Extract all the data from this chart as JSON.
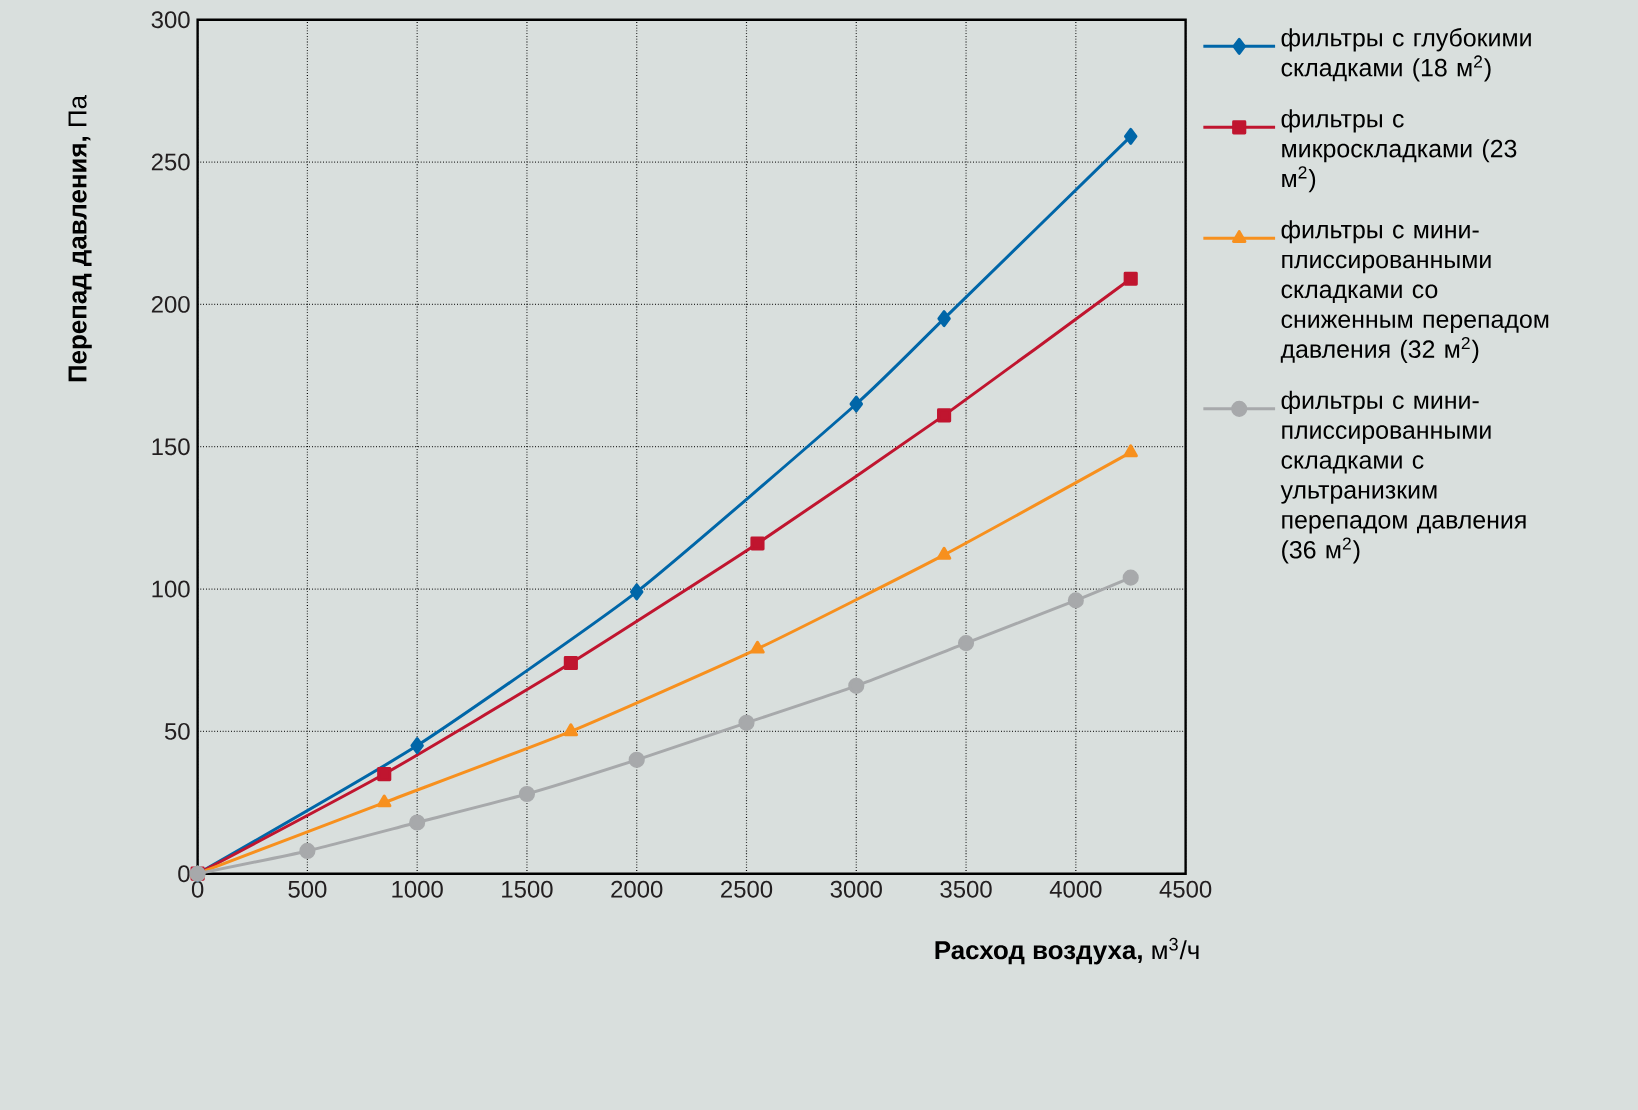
{
  "chart_data": {
    "type": "line",
    "xlabel": "**Расход воздуха,** м$^{3}$/ч",
    "ylabel": "**Перепад давления,** Па",
    "xlim": [
      0,
      4500
    ],
    "ylim": [
      0,
      300
    ],
    "xticks": [
      0,
      500,
      1000,
      1500,
      2000,
      2500,
      3000,
      3500,
      4000,
      4500
    ],
    "yticks": [
      0,
      50,
      100,
      150,
      200,
      250,
      300
    ],
    "grid": true,
    "legend": "right",
    "series": [
      {
        "name": "фильтры с глубокими складками (18 м$^{2}$)",
        "color": "#0066a8",
        "marker": "diamond",
        "x": [
          0,
          1000,
          2000,
          3000,
          3400,
          4250
        ],
        "values": [
          0,
          45,
          99,
          165,
          195,
          259
        ]
      },
      {
        "name": "фильтры с микроскладками (23 м$^{2}$)",
        "color": "#c0152f",
        "marker": "square",
        "x": [
          0,
          850,
          1700,
          2550,
          3400,
          4250
        ],
        "values": [
          0,
          35,
          74,
          116,
          161,
          209
        ]
      },
      {
        "name": "фильтры с мини-плиссированными складками со сниженным перепадом давления (32 м$^{2}$)",
        "color": "#f7901e",
        "marker": "triangle",
        "x": [
          0,
          850,
          1700,
          2550,
          3400,
          4250
        ],
        "values": [
          0,
          25,
          50,
          79,
          112,
          148
        ]
      },
      {
        "name": "фильтры с мини-плиссированными складками с ультранизким перепадом давления (36 м$^{2}$)",
        "color": "#a7a9ab",
        "marker": "circle",
        "x": [
          0,
          500,
          1000,
          1500,
          2000,
          2500,
          3000,
          3500,
          4000,
          4250
        ],
        "values": [
          0,
          8,
          18,
          28,
          40,
          53,
          66,
          81,
          96,
          104
        ]
      }
    ]
  }
}
